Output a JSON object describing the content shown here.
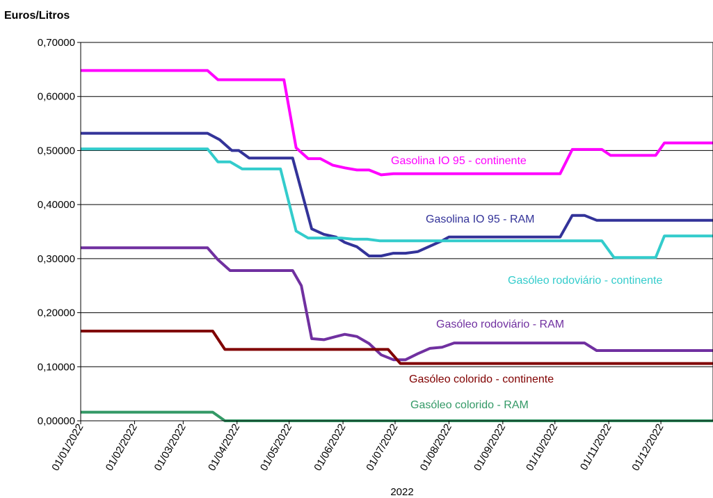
{
  "chart_data": {
    "type": "line",
    "ylabel": "Euros/Litros",
    "xlabel": "2022",
    "ylim": [
      0,
      0.7
    ],
    "xlim": [
      "01/01/2022",
      "31/12/2022"
    ],
    "grid": "horizontal",
    "legend": "inline-labels",
    "y_ticks": [
      "0,00000",
      "0,10000",
      "0,20000",
      "0,30000",
      "0,40000",
      "0,50000",
      "0,60000",
      "0,70000"
    ],
    "x_ticks": [
      "01/01/2022",
      "01/02/2022",
      "01/03/2022",
      "01/04/2022",
      "01/05/2022",
      "01/06/2022",
      "01/07/2022",
      "01/08/2022",
      "01/09/2022",
      "01/10/2022",
      "01/11/2022",
      "01/12/2022"
    ],
    "series": [
      {
        "name": "Gasolina IO 95 - continente",
        "color": "#FF00FF",
        "points": [
          [
            "2022-01-01",
            0.648
          ],
          [
            "2022-03-15",
            0.648
          ],
          [
            "2022-03-21",
            0.631
          ],
          [
            "2022-04-28",
            0.631
          ],
          [
            "2022-05-05",
            0.505
          ],
          [
            "2022-05-12",
            0.485
          ],
          [
            "2022-05-19",
            0.485
          ],
          [
            "2022-05-26",
            0.473
          ],
          [
            "2022-06-02",
            0.468
          ],
          [
            "2022-06-09",
            0.464
          ],
          [
            "2022-06-16",
            0.464
          ],
          [
            "2022-06-23",
            0.455
          ],
          [
            "2022-06-30",
            0.457
          ],
          [
            "2022-07-15",
            0.457
          ],
          [
            "2022-10-04",
            0.457
          ],
          [
            "2022-10-11",
            0.502
          ],
          [
            "2022-10-28",
            0.502
          ],
          [
            "2022-11-02",
            0.491
          ],
          [
            "2022-11-28",
            0.491
          ],
          [
            "2022-12-03",
            0.514
          ],
          [
            "2022-12-31",
            0.514
          ]
        ]
      },
      {
        "name": "Gasolina IO 95 - RAM",
        "color": "#333399",
        "points": [
          [
            "2022-01-01",
            0.532
          ],
          [
            "2022-03-15",
            0.532
          ],
          [
            "2022-03-22",
            0.52
          ],
          [
            "2022-03-29",
            0.5
          ],
          [
            "2022-04-02",
            0.5
          ],
          [
            "2022-04-08",
            0.486
          ],
          [
            "2022-05-03",
            0.486
          ],
          [
            "2022-05-14",
            0.355
          ],
          [
            "2022-05-21",
            0.345
          ],
          [
            "2022-05-28",
            0.34
          ],
          [
            "2022-06-02",
            0.33
          ],
          [
            "2022-06-09",
            0.322
          ],
          [
            "2022-06-16",
            0.305
          ],
          [
            "2022-06-23",
            0.305
          ],
          [
            "2022-06-30",
            0.31
          ],
          [
            "2022-07-07",
            0.31
          ],
          [
            "2022-07-14",
            0.313
          ],
          [
            "2022-07-28",
            0.333
          ],
          [
            "2022-08-01",
            0.34
          ],
          [
            "2022-10-04",
            0.34
          ],
          [
            "2022-10-11",
            0.38
          ],
          [
            "2022-10-18",
            0.38
          ],
          [
            "2022-10-25",
            0.371
          ],
          [
            "2022-12-31",
            0.371
          ]
        ]
      },
      {
        "name": "Gasóleo rodoviário - continente",
        "color": "#33CCCC",
        "points": [
          [
            "2022-01-01",
            0.503
          ],
          [
            "2022-03-15",
            0.503
          ],
          [
            "2022-03-21",
            0.479
          ],
          [
            "2022-03-28",
            0.479
          ],
          [
            "2022-04-04",
            0.466
          ],
          [
            "2022-04-26",
            0.466
          ],
          [
            "2022-05-05",
            0.351
          ],
          [
            "2022-05-12",
            0.338
          ],
          [
            "2022-05-31",
            0.338
          ],
          [
            "2022-06-07",
            0.336
          ],
          [
            "2022-06-15",
            0.336
          ],
          [
            "2022-06-22",
            0.333
          ],
          [
            "2022-10-28",
            0.333
          ],
          [
            "2022-11-04",
            0.302
          ],
          [
            "2022-11-28",
            0.302
          ],
          [
            "2022-12-03",
            0.342
          ],
          [
            "2022-12-31",
            0.342
          ]
        ]
      },
      {
        "name": "Gasóleo rodoviário - RAM",
        "color": "#7030A0",
        "points": [
          [
            "2022-01-01",
            0.32
          ],
          [
            "2022-03-15",
            0.32
          ],
          [
            "2022-03-21",
            0.298
          ],
          [
            "2022-03-28",
            0.278
          ],
          [
            "2022-05-03",
            0.278
          ],
          [
            "2022-05-08",
            0.25
          ],
          [
            "2022-05-14",
            0.152
          ],
          [
            "2022-05-21",
            0.15
          ],
          [
            "2022-05-28",
            0.156
          ],
          [
            "2022-06-02",
            0.16
          ],
          [
            "2022-06-09",
            0.156
          ],
          [
            "2022-06-16",
            0.143
          ],
          [
            "2022-06-23",
            0.122
          ],
          [
            "2022-06-30",
            0.113
          ],
          [
            "2022-07-07",
            0.113
          ],
          [
            "2022-07-14",
            0.124
          ],
          [
            "2022-07-21",
            0.134
          ],
          [
            "2022-07-28",
            0.136
          ],
          [
            "2022-08-04",
            0.144
          ],
          [
            "2022-10-18",
            0.144
          ],
          [
            "2022-10-25",
            0.13
          ],
          [
            "2022-12-31",
            0.13
          ]
        ]
      },
      {
        "name": "Gasóleo colorido - continente",
        "color": "#800000",
        "points": [
          [
            "2022-01-01",
            0.166
          ],
          [
            "2022-03-18",
            0.166
          ],
          [
            "2022-03-25",
            0.132
          ],
          [
            "2022-06-27",
            0.132
          ],
          [
            "2022-07-04",
            0.106
          ],
          [
            "2022-12-31",
            0.106
          ]
        ]
      },
      {
        "name": "Gasóleo colorido - RAM",
        "color": "#339966",
        "points": [
          [
            "2022-01-01",
            0.016
          ],
          [
            "2022-03-18",
            0.016
          ],
          [
            "2022-03-25",
            0.0
          ],
          [
            "2022-12-31",
            0.0
          ]
        ]
      }
    ]
  }
}
